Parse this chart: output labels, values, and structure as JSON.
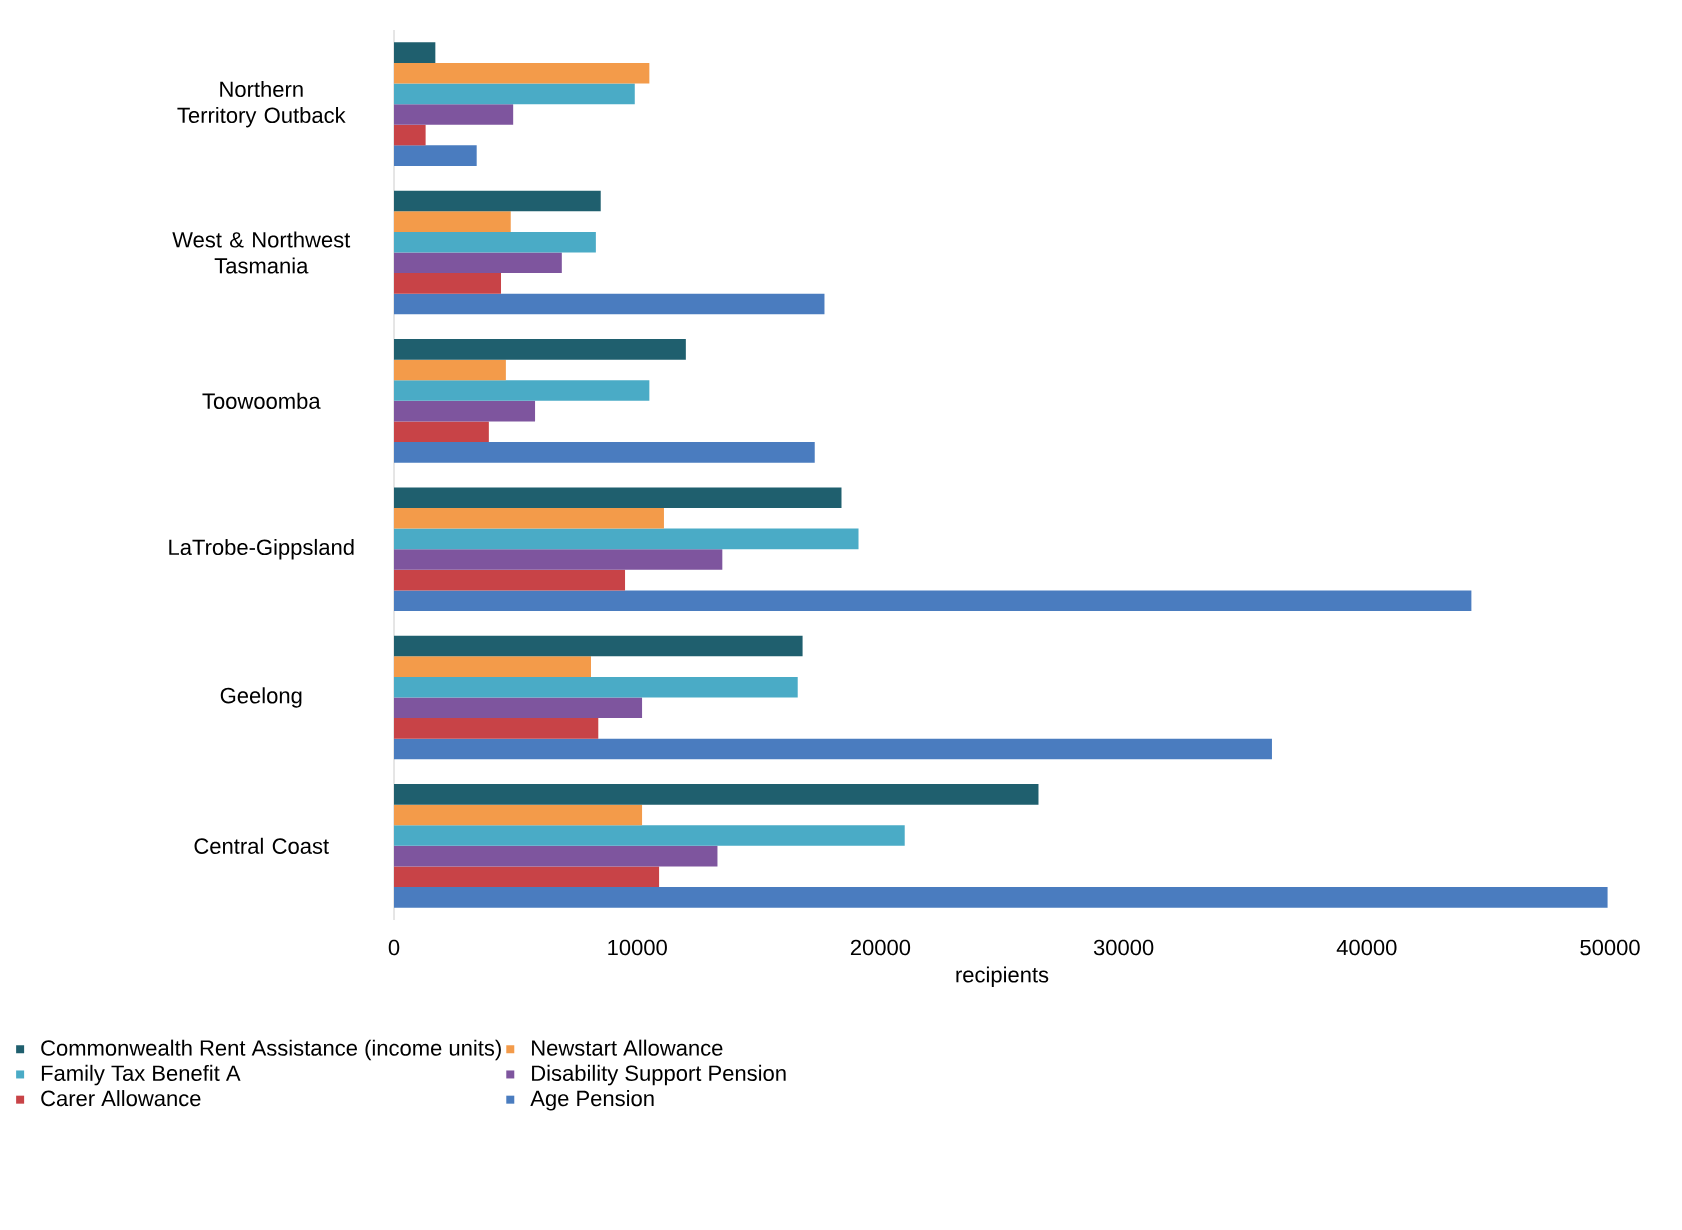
{
  "chart_data": {
    "type": "bar",
    "orientation": "horizontal",
    "xlabel": "recipients",
    "categories": [
      "Northern Territory Outback",
      "West & Northwest Tasmania",
      "Toowoomba",
      "LaTrobe-Gippsland",
      "Geelong",
      "Central Coast"
    ],
    "series": [
      {
        "name": "Commonwealth Rent Assistance (income units)",
        "color": "#1f5f6e",
        "values": [
          1700,
          8500,
          12000,
          18400,
          16800,
          26500
        ]
      },
      {
        "name": "Newstart Allowance",
        "color": "#f39b4a",
        "values": [
          10500,
          4800,
          4600,
          11100,
          8100,
          10200
        ]
      },
      {
        "name": "Family Tax Benefit A",
        "color": "#4aabc6",
        "values": [
          9900,
          8300,
          10500,
          19100,
          16600,
          21000
        ]
      },
      {
        "name": "Disability Support Pension",
        "color": "#7e559e",
        "values": [
          4900,
          6900,
          5800,
          13500,
          10200,
          13300
        ]
      },
      {
        "name": "Carer Allowance",
        "color": "#c84347",
        "values": [
          1300,
          4400,
          3900,
          9500,
          8400,
          10900
        ]
      },
      {
        "name": "Age Pension",
        "color": "#4a7cbf",
        "values": [
          3400,
          17700,
          17300,
          44300,
          36100,
          49900
        ]
      }
    ],
    "xlim": [
      0,
      50000
    ],
    "xticks": [
      0,
      10000,
      20000,
      30000,
      40000,
      50000
    ],
    "legend": "bottom"
  }
}
